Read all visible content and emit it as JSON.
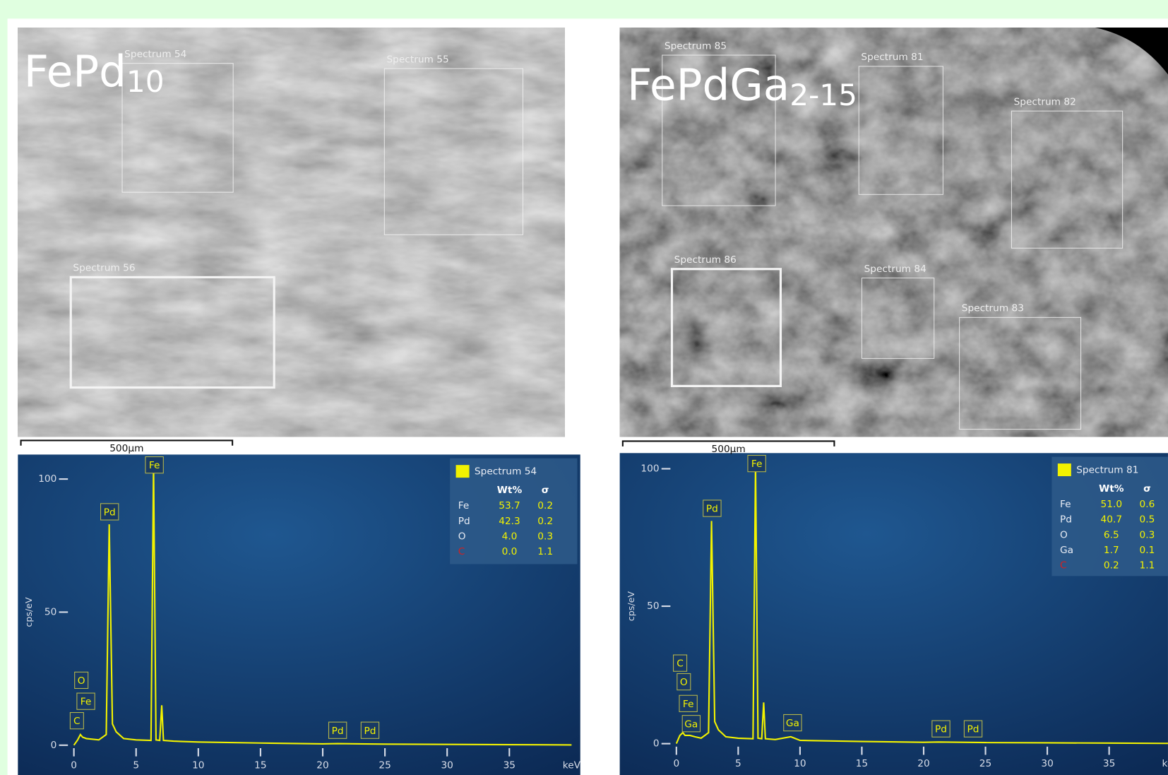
{
  "images": [
    {
      "title": "FePd",
      "title_subscript": "10",
      "regions": [
        "Spectrum 54",
        "Spectrum 55",
        "Spectrum 56"
      ],
      "scale_bar": "500μm"
    },
    {
      "title": "FePdGa",
      "title_subscript": "2-15",
      "regions": [
        "Spectrum 85",
        "Spectrum 81",
        "Spectrum 82",
        "Spectrum 86",
        "Spectrum 84",
        "Spectrum 83"
      ],
      "scale_bar": "500μm"
    }
  ],
  "chart_data": [
    {
      "type": "line",
      "y_label": "cps/eV",
      "x_label": "keV",
      "x": [
        0,
        0.3,
        0.52,
        0.7,
        1.0,
        2.0,
        2.6,
        2.84,
        3.1,
        3.4,
        4.0,
        5.0,
        6.2,
        6.4,
        6.6,
        6.9,
        7.06,
        7.2,
        8,
        10,
        15,
        20,
        21.2,
        25,
        30,
        35,
        40
      ],
      "series": [
        {
          "name": "Spectrum 54",
          "color": "#f2f200",
          "values": [
            0,
            2,
            4,
            3,
            2.5,
            2,
            4,
            83,
            8,
            5,
            2.5,
            2,
            1.8,
            105,
            2,
            1.8,
            15,
            1.8,
            1.5,
            1.2,
            0.8,
            0.5,
            0.6,
            0.4,
            0.3,
            0.2,
            0.1
          ]
        }
      ],
      "xlim": [
        -4.5,
        40.7
      ],
      "ylim": [
        -11.2,
        109.2
      ],
      "xticks": [
        0,
        5,
        10,
        15,
        20,
        25,
        30,
        35
      ],
      "yticks": [
        0,
        50,
        100
      ],
      "peaks": [
        {
          "label": "Fe",
          "x": 6.47,
          "y": 105.3
        },
        {
          "label": "Pd",
          "x": 2.87,
          "y": 87.7
        },
        {
          "label": "O",
          "x": 0.6,
          "y": 24.4
        },
        {
          "label": "Fe",
          "x": 0.96,
          "y": 16.5
        },
        {
          "label": "C",
          "x": 0.24,
          "y": 9.2
        },
        {
          "label": "Pd",
          "x": 21.2,
          "y": 5.6
        },
        {
          "label": "Pd",
          "x": 23.8,
          "y": 5.6
        }
      ],
      "legend_table": {
        "columns": [
          "Wt%",
          "σ"
        ],
        "rows": [
          [
            "Fe",
            "53.7",
            "0.2"
          ],
          [
            "Pd",
            "42.3",
            "0.2"
          ],
          [
            "O",
            "4.0",
            "0.3"
          ],
          [
            "C",
            "0.0",
            "1.1"
          ]
        ]
      }
    },
    {
      "type": "line",
      "y_label": "cps/eV",
      "x_label": "keV",
      "x": [
        0,
        0.28,
        0.52,
        0.7,
        1.1,
        1.5,
        2.0,
        2.6,
        2.84,
        3.1,
        3.4,
        4.0,
        5.0,
        6.2,
        6.4,
        6.6,
        6.9,
        7.06,
        7.2,
        8,
        9.25,
        10,
        15,
        20,
        21.2,
        25,
        30,
        35,
        40
      ],
      "series": [
        {
          "name": "Spectrum 81",
          "color": "#f2f200",
          "values": [
            0,
            3,
            4,
            3,
            3,
            2.5,
            2,
            4,
            81,
            8,
            5,
            2.5,
            2,
            1.8,
            102,
            2,
            1.8,
            15,
            1.8,
            1.5,
            2.5,
            1.2,
            0.8,
            0.5,
            0.6,
            0.4,
            0.3,
            0.2,
            0.1
          ]
        }
      ],
      "xlim": [
        -4.58,
        39.76
      ],
      "ylim": [
        -11.4,
        105.7
      ],
      "xticks": [
        0,
        5,
        10,
        15,
        20,
        25,
        30,
        35
      ],
      "yticks": [
        0,
        50,
        100
      ],
      "peaks": [
        {
          "label": "Fe",
          "x": 6.5,
          "y": 101.9
        },
        {
          "label": "Pd",
          "x": 2.89,
          "y": 85.6
        },
        {
          "label": "C",
          "x": 0.3,
          "y": 29.3
        },
        {
          "label": "O",
          "x": 0.6,
          "y": 22.5
        },
        {
          "label": "Fe",
          "x": 0.96,
          "y": 14.6
        },
        {
          "label": "Ga",
          "x": 1.2,
          "y": 7.3
        },
        {
          "label": "Ga",
          "x": 9.4,
          "y": 7.6
        },
        {
          "label": "Pd",
          "x": 21.4,
          "y": 5.4
        },
        {
          "label": "Pd",
          "x": 24.0,
          "y": 5.4
        }
      ],
      "legend_table": {
        "columns": [
          "Wt%",
          "σ"
        ],
        "rows": [
          [
            "Fe",
            "51.0",
            "0.6"
          ],
          [
            "Pd",
            "40.7",
            "0.5"
          ],
          [
            "O",
            "6.5",
            "0.3"
          ],
          [
            "Ga",
            "1.7",
            "0.1"
          ],
          [
            "C",
            "0.2",
            "1.1"
          ]
        ]
      }
    }
  ]
}
